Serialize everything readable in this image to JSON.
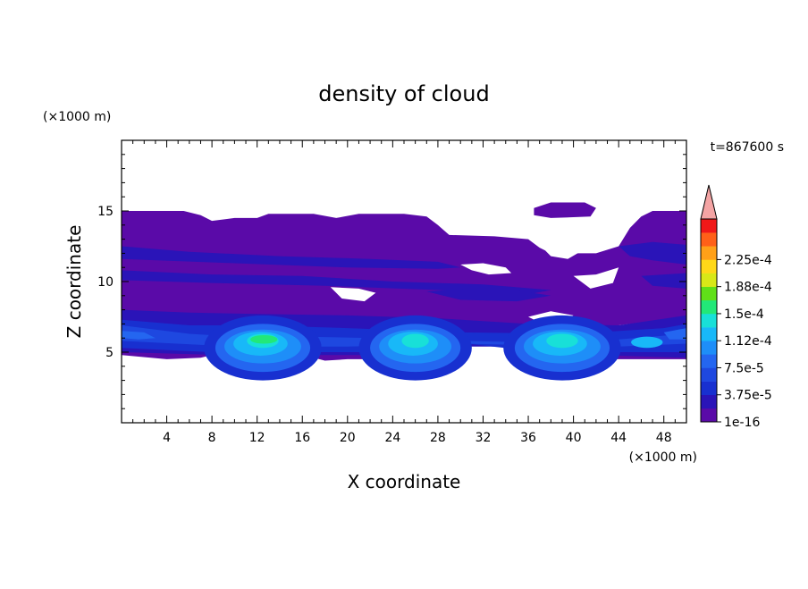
{
  "chart_data": {
    "type": "heatmap",
    "title": "density of cloud",
    "xlabel": "X coordinate",
    "ylabel": "Z coordinate",
    "x_unit": "(×1000 m)",
    "y_unit": "(×1000 m)",
    "time_label": "t=867600 s",
    "xlim": [
      0,
      50
    ],
    "ylim": [
      0,
      20
    ],
    "x_ticks": [
      4,
      8,
      12,
      16,
      20,
      24,
      28,
      32,
      36,
      40,
      44,
      48
    ],
    "y_ticks": [
      5,
      10,
      15
    ],
    "colorbar": {
      "labels": [
        "1e-16",
        "3.75e-5",
        "7.5e-5",
        "1.12e-4",
        "1.5e-4",
        "1.88e-4",
        "2.25e-4"
      ],
      "levels": [
        1e-16,
        1.875e-05,
        3.75e-05,
        5.625e-05,
        7.5e-05,
        9.375e-05,
        0.0001125,
        0.00013125,
        0.00015,
        0.00016875,
        0.0001875,
        0.00020625,
        0.000225,
        0.00024375
      ],
      "colors": [
        "#5a0aa8",
        "#2a14b8",
        "#1830d0",
        "#1e48e0",
        "#2466f0",
        "#1e8ef8",
        "#18b8f8",
        "#18e0d8",
        "#22e878",
        "#60e018",
        "#d8e818",
        "#ffd818",
        "#ffa018",
        "#ff6018",
        "#f01818"
      ],
      "over_color": "#f4a4a4"
    },
    "cloud_layer": {
      "base_z": 4.5,
      "top_z": 15,
      "core_centers_x": [
        12.5,
        26,
        39
      ]
    }
  }
}
